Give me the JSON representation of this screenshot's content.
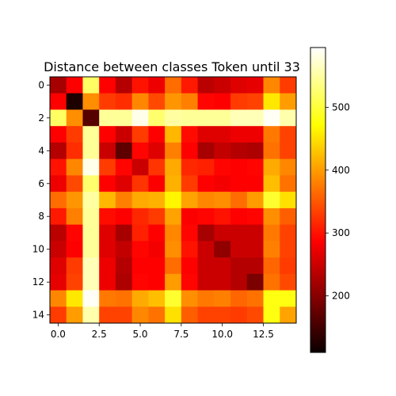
{
  "chart_data": {
    "type": "heatmap",
    "title": "Distance between classes Token until 33",
    "xlabel": "",
    "ylabel": "",
    "rows": 15,
    "cols": 15,
    "x_ticks": [
      0,
      2.5,
      5,
      7.5,
      10,
      12.5
    ],
    "x_tick_labels": [
      "0.0",
      "2.5",
      "5.0",
      "7.5",
      "10.0",
      "12.5"
    ],
    "y_ticks": [
      0,
      2,
      4,
      6,
      8,
      10,
      12,
      14
    ],
    "y_tick_labels": [
      "0",
      "2",
      "4",
      "6",
      "8",
      "10",
      "12",
      "14"
    ],
    "colormap": "hot",
    "colorbar": {
      "vmin": 110,
      "vmax": 595,
      "ticks": [
        200,
        300,
        400,
        500
      ],
      "tick_labels": [
        "200",
        "300",
        "400",
        "500"
      ]
    },
    "grid": false,
    "values": [
      [
        205,
        275,
        520,
        270,
        215,
        300,
        255,
        365,
        305,
        220,
        230,
        245,
        250,
        385,
        330
      ],
      [
        275,
        110,
        390,
        330,
        320,
        385,
        340,
        395,
        380,
        290,
        285,
        330,
        335,
        455,
        400
      ],
      [
        520,
        390,
        150,
        545,
        545,
        585,
        525,
        550,
        545,
        545,
        545,
        560,
        560,
        590,
        555
      ],
      [
        270,
        330,
        545,
        280,
        230,
        330,
        280,
        420,
        295,
        245,
        245,
        255,
        255,
        375,
        335
      ],
      [
        215,
        320,
        545,
        230,
        155,
        290,
        245,
        380,
        270,
        205,
        225,
        215,
        210,
        370,
        335
      ],
      [
        300,
        385,
        585,
        330,
        290,
        230,
        325,
        410,
        315,
        310,
        290,
        285,
        290,
        410,
        385
      ],
      [
        255,
        340,
        525,
        280,
        245,
        325,
        265,
        415,
        330,
        270,
        260,
        280,
        285,
        425,
        370
      ],
      [
        365,
        395,
        550,
        420,
        380,
        410,
        415,
        465,
        405,
        385,
        390,
        365,
        400,
        495,
        450
      ],
      [
        305,
        380,
        545,
        295,
        270,
        315,
        330,
        405,
        265,
        290,
        300,
        285,
        290,
        390,
        355
      ],
      [
        220,
        290,
        545,
        245,
        205,
        310,
        270,
        385,
        290,
        205,
        230,
        230,
        230,
        375,
        335
      ],
      [
        230,
        285,
        545,
        245,
        225,
        290,
        260,
        390,
        300,
        230,
        190,
        230,
        230,
        380,
        335
      ],
      [
        245,
        330,
        560,
        255,
        215,
        285,
        280,
        365,
        285,
        230,
        230,
        215,
        215,
        360,
        330
      ],
      [
        250,
        335,
        560,
        255,
        210,
        290,
        285,
        400,
        290,
        230,
        230,
        215,
        175,
        370,
        340
      ],
      [
        385,
        455,
        590,
        375,
        370,
        410,
        425,
        495,
        390,
        375,
        380,
        360,
        370,
        480,
        480
      ],
      [
        330,
        400,
        555,
        335,
        335,
        385,
        370,
        450,
        355,
        335,
        335,
        330,
        340,
        480,
        405
      ]
    ]
  }
}
